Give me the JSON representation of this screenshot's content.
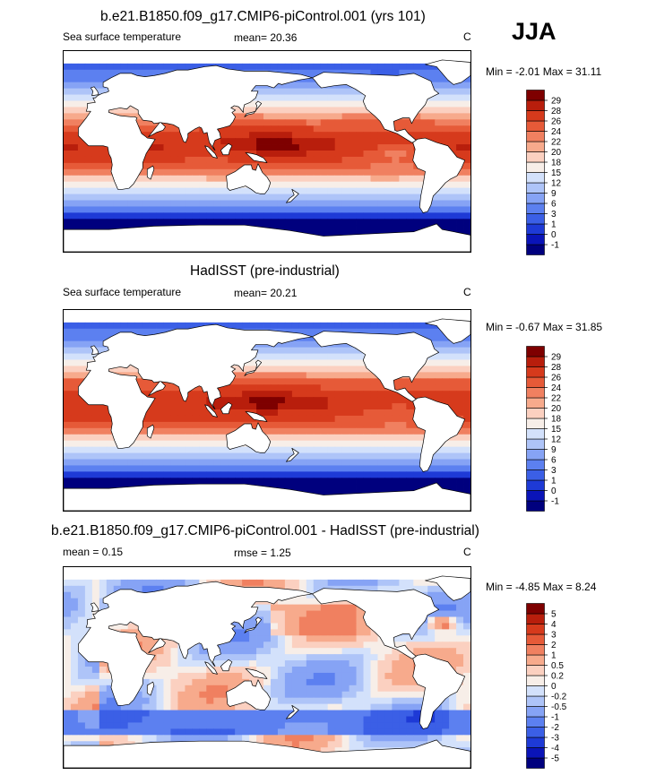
{
  "season": "JJA",
  "panels": [
    {
      "title": "b.e21.B1850.f09_g17.CMIP6-piControl.001 (yrs 101)",
      "left_label": "Sea surface temperature",
      "mid_label": "mean=  20.36",
      "units": "C",
      "minmax": "Min =  -2.01 Max =  31.11",
      "field": "model"
    },
    {
      "title": "HadISST (pre-industrial)",
      "left_label": "Sea surface temperature",
      "mid_label": "mean=  20.21",
      "units": "C",
      "minmax": "Min =  -0.67 Max =  31.85",
      "field": "obs"
    },
    {
      "title": "b.e21.B1850.f09_g17.CMIP6-piControl.001 - HadISST (pre-industrial)",
      "left_label": "mean =   0.15",
      "mid_label": "rmse =   1.25",
      "units": "C",
      "minmax": "Min =  -4.85 Max =   8.24",
      "field": "diff"
    }
  ],
  "chart_data": [
    {
      "type": "heatmap",
      "title": "b.e21.B1850.f09_g17.CMIP6-piControl.001 (yrs 101)",
      "variable": "Sea surface temperature",
      "units": "C",
      "mean": 20.36,
      "min": -2.01,
      "max": 31.11,
      "colorbar_levels": [
        -1,
        0,
        1,
        3,
        6,
        9,
        12,
        15,
        18,
        20,
        22,
        24,
        26,
        28,
        29
      ],
      "colorbar_colors": [
        "#00007e",
        "#0a14b8",
        "#1e3ad6",
        "#3b5fe6",
        "#5c80f0",
        "#86a3f5",
        "#aec4f8",
        "#d3e1fb",
        "#f7eee8",
        "#fbd0c0",
        "#f7aa8c",
        "#f08060",
        "#e65a38",
        "#d63a1c",
        "#b81e0c",
        "#7e0000"
      ]
    },
    {
      "type": "heatmap",
      "title": "HadISST (pre-industrial)",
      "variable": "Sea surface temperature",
      "units": "C",
      "mean": 20.21,
      "min": -0.67,
      "max": 31.85,
      "colorbar_levels": [
        -1,
        0,
        1,
        3,
        6,
        9,
        12,
        15,
        18,
        20,
        22,
        24,
        26,
        28,
        29
      ],
      "colorbar_colors": [
        "#00007e",
        "#0a14b8",
        "#1e3ad6",
        "#3b5fe6",
        "#5c80f0",
        "#86a3f5",
        "#aec4f8",
        "#d3e1fb",
        "#f7eee8",
        "#fbd0c0",
        "#f7aa8c",
        "#f08060",
        "#e65a38",
        "#d63a1c",
        "#b81e0c",
        "#7e0000"
      ]
    },
    {
      "type": "heatmap",
      "title": "b.e21.B1850.f09_g17.CMIP6-piControl.001 - HadISST (pre-industrial)",
      "units": "C",
      "mean": 0.15,
      "rmse": 1.25,
      "min": -4.85,
      "max": 8.24,
      "colorbar_levels": [
        -5,
        -4,
        -3,
        -2,
        -1,
        -0.5,
        -0.2,
        0,
        0.2,
        0.5,
        1,
        2,
        3,
        4,
        5
      ],
      "colorbar_colors": [
        "#00007e",
        "#0a14b8",
        "#1e3ad6",
        "#3b5fe6",
        "#5c80f0",
        "#86a3f5",
        "#aec4f8",
        "#d3e1fb",
        "#f7eee8",
        "#fbd0c0",
        "#f7aa8c",
        "#f08060",
        "#e65a38",
        "#d63a1c",
        "#b81e0c",
        "#7e0000"
      ]
    }
  ]
}
